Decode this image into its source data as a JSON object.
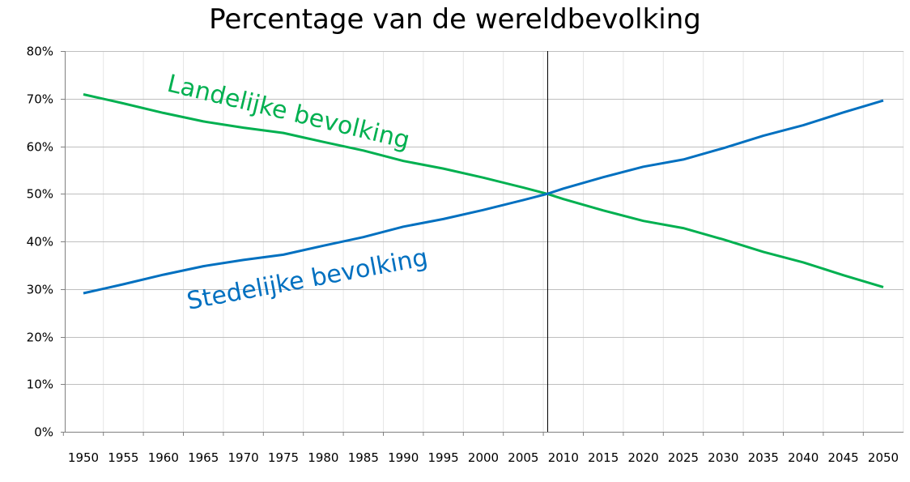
{
  "chart_data": {
    "type": "line",
    "title": "Percentage van de wereldbevolking",
    "xlabel": "",
    "ylabel": "",
    "x": [
      1950,
      1955,
      1960,
      1965,
      1970,
      1975,
      1980,
      1985,
      1990,
      1995,
      2000,
      2005,
      2008,
      2010,
      2015,
      2020,
      2025,
      2030,
      2035,
      2040,
      2045,
      2050
    ],
    "x_tick_labels": [
      "1950",
      "1955",
      "1960",
      "1965",
      "1970",
      "1975",
      "1980",
      "1985",
      "1990",
      "1995",
      "2000",
      "2005",
      "2010",
      "2015",
      "2020",
      "2025",
      "2030",
      "2035",
      "2040",
      "2045",
      "2050"
    ],
    "y_tick_labels": [
      "0%",
      "10%",
      "20%",
      "30%",
      "40%",
      "50%",
      "60%",
      "70%",
      "80%"
    ],
    "ylim": [
      0,
      80
    ],
    "xlim": [
      1950,
      2050
    ],
    "grid": true,
    "vertical_marker_x": 2008,
    "series": [
      {
        "name": "Landelijke bevolking",
        "color": "#00b050",
        "values": [
          70.9,
          69.0,
          67.0,
          65.2,
          63.9,
          62.8,
          60.9,
          59.1,
          56.9,
          55.3,
          53.4,
          51.3,
          50.0,
          48.9,
          46.5,
          44.3,
          42.8,
          40.4,
          37.8,
          35.6,
          32.9,
          30.4
        ]
      },
      {
        "name": "Stedelijke bevolking",
        "color": "#0070c0",
        "values": [
          29.1,
          31.0,
          33.0,
          34.8,
          36.1,
          37.2,
          39.1,
          40.9,
          43.1,
          44.7,
          46.6,
          48.7,
          50.0,
          51.1,
          53.5,
          55.7,
          57.2,
          59.6,
          62.2,
          64.4,
          67.1,
          69.6
        ]
      }
    ]
  }
}
